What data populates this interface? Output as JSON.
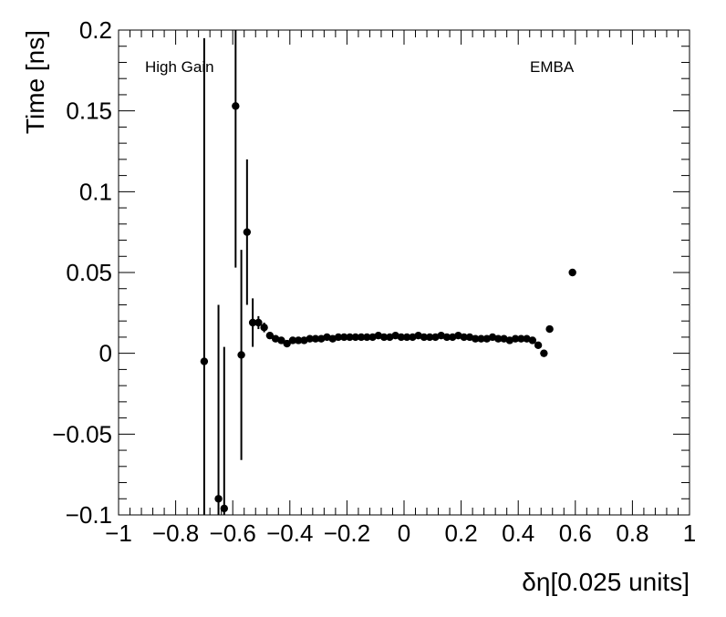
{
  "chart_data": {
    "type": "scatter",
    "title": "",
    "xlabel": "δη[0.025 units]",
    "ylabel": "Time [ns]",
    "xlim": [
      -1,
      1
    ],
    "ylim": [
      -0.1,
      0.2
    ],
    "x_tick_labels": [
      "−1",
      "−0.8",
      "−0.6",
      "−0.4",
      "−0.2",
      "0",
      "0.2",
      "0.4",
      "0.6",
      "0.8",
      "1"
    ],
    "y_tick_labels": [
      "−0.1",
      "−0.05",
      "0",
      "0.05",
      "0.1",
      "0.15",
      "0.2"
    ],
    "annotations": [
      "High Gain",
      "EMBA"
    ],
    "grid": false,
    "marker_color": "#000000",
    "series": [
      {
        "x": [
          -0.7,
          -0.65,
          -0.63,
          -0.59,
          -0.57,
          -0.55,
          -0.53,
          -0.51,
          -0.49,
          -0.47,
          -0.45,
          -0.43,
          -0.41,
          -0.39,
          -0.37,
          -0.35,
          -0.33,
          -0.31,
          -0.29,
          -0.27,
          -0.25,
          -0.23,
          -0.21,
          -0.19,
          -0.17,
          -0.15,
          -0.13,
          -0.11,
          -0.09,
          -0.07,
          -0.05,
          -0.03,
          -0.01,
          0.01,
          0.03,
          0.05,
          0.07,
          0.09,
          0.11,
          0.13,
          0.15,
          0.17,
          0.19,
          0.21,
          0.23,
          0.25,
          0.27,
          0.29,
          0.31,
          0.33,
          0.35,
          0.37,
          0.39,
          0.41,
          0.43,
          0.45,
          0.47,
          0.49,
          0.51,
          0.59
        ],
        "y": [
          -0.005,
          -0.09,
          -0.096,
          0.153,
          -0.001,
          0.075,
          0.019,
          0.019,
          0.016,
          0.011,
          0.009,
          0.008,
          0.006,
          0.008,
          0.008,
          0.008,
          0.009,
          0.009,
          0.009,
          0.01,
          0.009,
          0.01,
          0.01,
          0.01,
          0.01,
          0.01,
          0.01,
          0.01,
          0.011,
          0.01,
          0.01,
          0.011,
          0.01,
          0.01,
          0.01,
          0.011,
          0.01,
          0.01,
          0.01,
          0.011,
          0.01,
          0.01,
          0.011,
          0.01,
          0.01,
          0.009,
          0.009,
          0.009,
          0.01,
          0.009,
          0.009,
          0.008,
          0.009,
          0.009,
          0.009,
          0.008,
          0.005,
          0.0,
          0.015,
          0.05
        ],
        "yerr": [
          0.2,
          0.12,
          0.1,
          0.1,
          0.065,
          0.045,
          0.015,
          0.004,
          0.003,
          0.002,
          0.001,
          0.001,
          0.001,
          0.001,
          0.001,
          0.001,
          0.001,
          0.001,
          0.001,
          0.001,
          0.001,
          0.001,
          0.001,
          0.001,
          0.001,
          0.001,
          0.001,
          0.001,
          0.001,
          0.001,
          0.001,
          0.001,
          0.001,
          0.001,
          0.001,
          0.001,
          0.001,
          0.001,
          0.001,
          0.001,
          0.001,
          0.001,
          0.001,
          0.001,
          0.001,
          0.001,
          0.001,
          0.001,
          0.001,
          0.001,
          0.001,
          0.001,
          0.001,
          0.001,
          0.001,
          0.001,
          0.001,
          0.001,
          0.001,
          0.0
        ]
      }
    ]
  }
}
